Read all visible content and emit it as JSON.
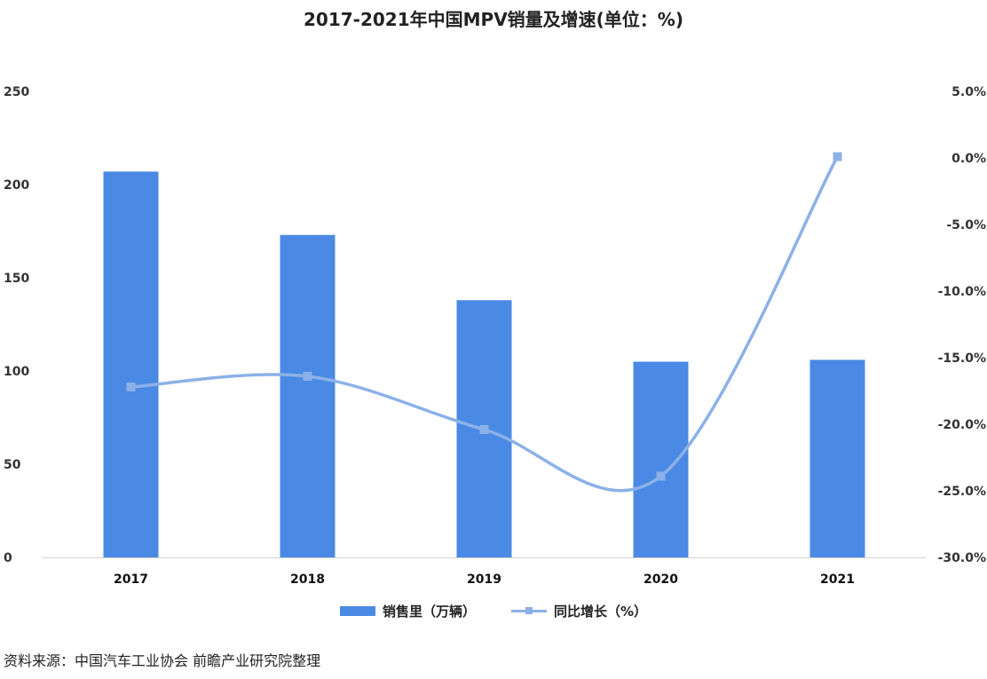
{
  "chart_data": {
    "type": "bar+line",
    "title": "2017-2021年中国MPV销量及增速(单位：%)",
    "categories": [
      "2017",
      "2018",
      "2019",
      "2020",
      "2021"
    ],
    "series": [
      {
        "name": "销售里（万辆）",
        "type": "bar",
        "axis": "left",
        "color": "#4a8ae4",
        "values": [
          207,
          173,
          138,
          105,
          106
        ]
      },
      {
        "name": "同比增长（%）",
        "type": "line",
        "axis": "right",
        "color": "#8cb1e8",
        "values": [
          -17.2,
          -16.4,
          -20.4,
          -23.9,
          0.1
        ]
      }
    ],
    "y_left": {
      "ylim": [
        0,
        250
      ],
      "ticks": [
        "0",
        "50",
        "100",
        "150",
        "200",
        "250"
      ]
    },
    "y_right": {
      "ylim": [
        -30,
        5
      ],
      "ticks": [
        "5.0%",
        "0.0%",
        "-5.0%",
        "-10.0%",
        "-15.0%",
        "-20.0%",
        "-25.0%",
        "-30.0%"
      ]
    },
    "source": "资料来源：中国汽车工业协会 前瞻产业研究院整理"
  }
}
